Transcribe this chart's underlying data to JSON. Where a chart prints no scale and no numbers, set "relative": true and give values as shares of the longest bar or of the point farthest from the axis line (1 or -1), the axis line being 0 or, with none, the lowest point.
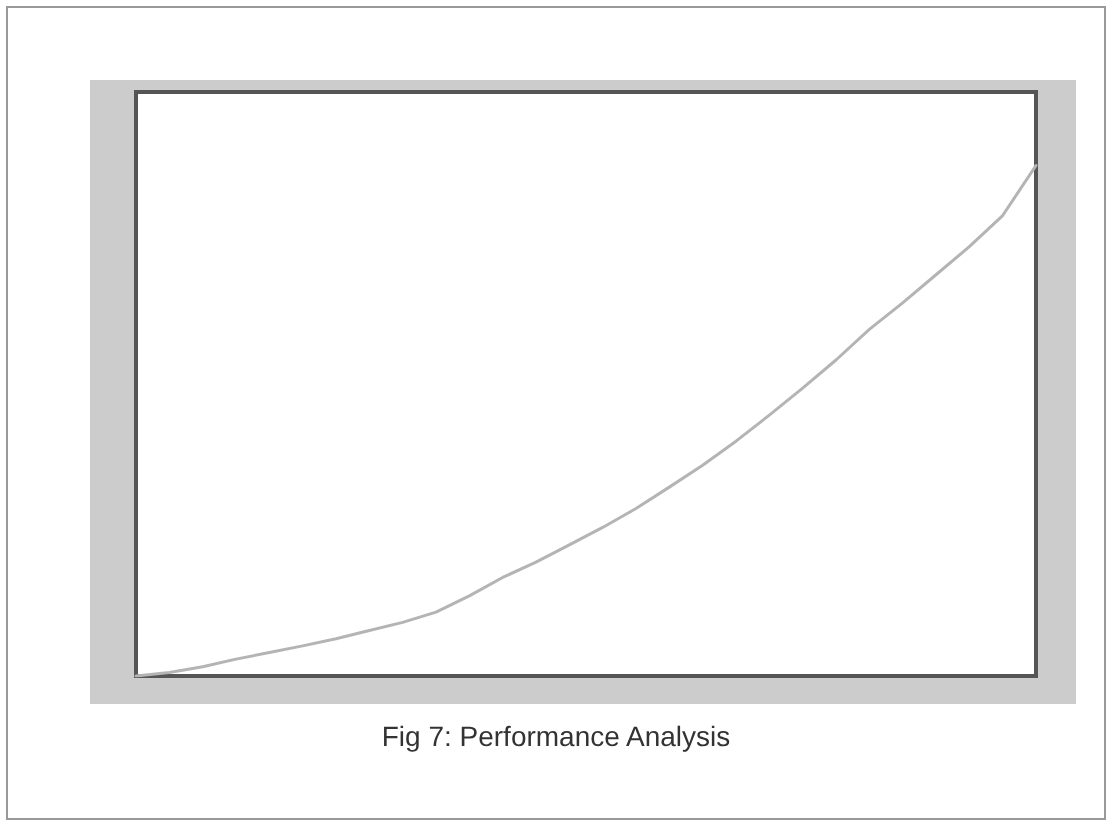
{
  "chart_data": {
    "type": "line",
    "title": "Fig 7: Performance Analysis",
    "relative": true,
    "categories": [
      null,
      null,
      null,
      null,
      null,
      null,
      null,
      null,
      null,
      null,
      null,
      null,
      null,
      null,
      null,
      null,
      null,
      null,
      null,
      null,
      null,
      null,
      null,
      null,
      null,
      null,
      null,
      null
    ],
    "series": [
      {
        "color": "#b4b4b4",
        "values": [
          0,
          0.007,
          0.018,
          0.033,
          0.046,
          0.059,
          0.073,
          0.089,
          0.105,
          0.125,
          0.157,
          0.193,
          0.223,
          0.257,
          0.291,
          0.328,
          0.37,
          0.413,
          0.46,
          0.511,
          0.564,
          0.619,
          0.679,
          0.731,
          0.786,
          0.841,
          0.902,
          1
        ]
      }
    ],
    "marker": "none",
    "line_style": "solid"
  }
}
